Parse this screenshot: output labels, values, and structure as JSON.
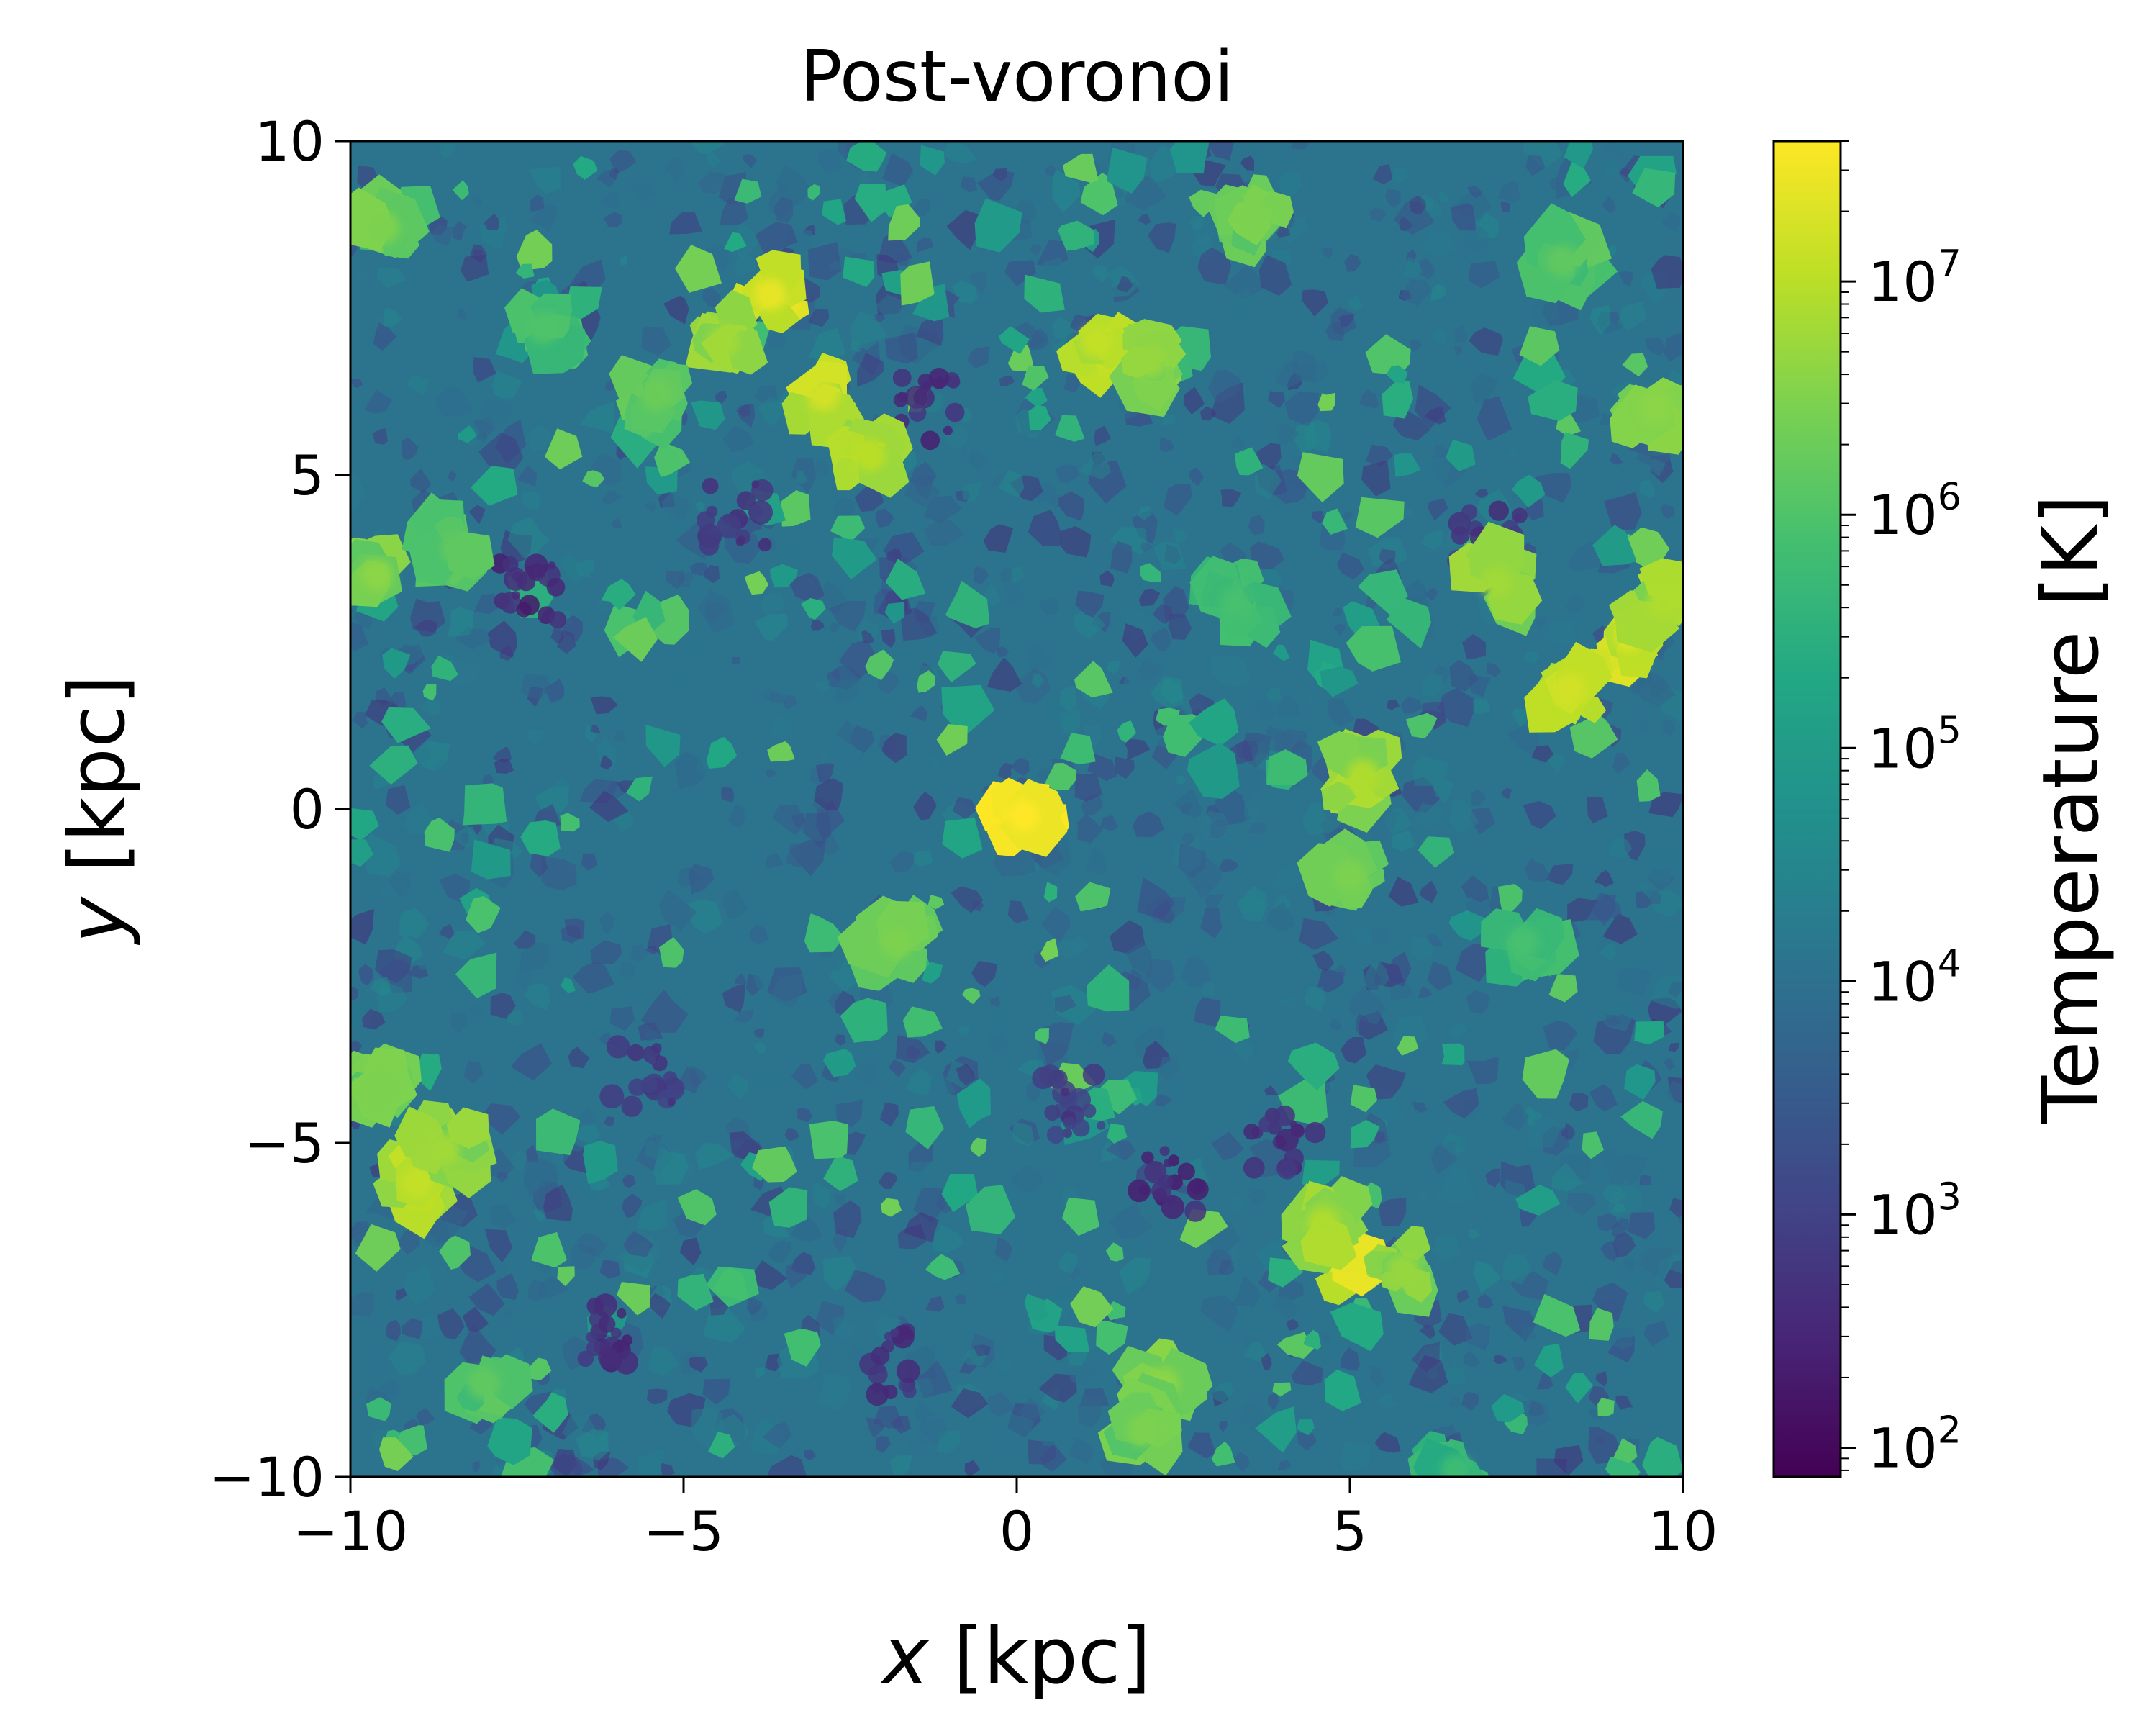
{
  "chart_data": {
    "type": "heatmap",
    "title": "Post-voronoi",
    "xlabel_var": "x",
    "xlabel_unit": " [kpc]",
    "ylabel_var": "y",
    "ylabel_unit": " [kpc]",
    "xlim": [
      -10,
      10
    ],
    "ylim": [
      -10,
      10
    ],
    "x_ticks": [
      {
        "value": -10,
        "label": "−10"
      },
      {
        "value": -5,
        "label": "−5"
      },
      {
        "value": 0,
        "label": "0"
      },
      {
        "value": 5,
        "label": "5"
      },
      {
        "value": 10,
        "label": "10"
      }
    ],
    "y_ticks": [
      {
        "value": -10,
        "label": "−10"
      },
      {
        "value": -5,
        "label": "−5"
      },
      {
        "value": 0,
        "label": "0"
      },
      {
        "value": 5,
        "label": "5"
      },
      {
        "value": 10,
        "label": "10"
      }
    ],
    "grid": false,
    "colorbar": {
      "label": "Temperature [K]",
      "scale": "log",
      "colormap": "viridis",
      "range": [
        75,
        40000000
      ],
      "ticks": [
        {
          "value": 100,
          "label": "10",
          "exp": "2"
        },
        {
          "value": 1000,
          "label": "10",
          "exp": "3"
        },
        {
          "value": 10000,
          "label": "10",
          "exp": "4"
        },
        {
          "value": 100000,
          "label": "10",
          "exp": "5"
        },
        {
          "value": 1000000,
          "label": "10",
          "exp": "6"
        },
        {
          "value": 10000000,
          "label": "10",
          "exp": "7"
        }
      ]
    },
    "background_temperature": 12000,
    "hot_regions": [
      {
        "x": -3.7,
        "y": 7.7,
        "T": 25000000
      },
      {
        "x": -2.9,
        "y": 6.2,
        "T": 16000000
      },
      {
        "x": -2.2,
        "y": 5.3,
        "T": 10000000
      },
      {
        "x": -4.4,
        "y": 7.0,
        "T": 6000000
      },
      {
        "x": 1.2,
        "y": 7.0,
        "T": 12000000
      },
      {
        "x": 2.0,
        "y": 6.7,
        "T": 5000000
      },
      {
        "x": 3.6,
        "y": 8.8,
        "T": 3000000
      },
      {
        "x": 8.2,
        "y": 8.2,
        "T": 1500000
      },
      {
        "x": 9.6,
        "y": 6.0,
        "T": 4000000
      },
      {
        "x": 7.2,
        "y": 3.4,
        "T": 6000000
      },
      {
        "x": 9.2,
        "y": 2.6,
        "T": 20000000
      },
      {
        "x": 8.3,
        "y": 1.8,
        "T": 16000000
      },
      {
        "x": 9.7,
        "y": 3.1,
        "T": 8000000
      },
      {
        "x": 5.2,
        "y": 0.5,
        "T": 8000000
      },
      {
        "x": 5.0,
        "y": -1.0,
        "T": 3000000
      },
      {
        "x": 0.1,
        "y": -0.1,
        "T": 40000000
      },
      {
        "x": 5.0,
        "y": -6.8,
        "T": 25000000
      },
      {
        "x": 4.6,
        "y": -6.2,
        "T": 8000000
      },
      {
        "x": 5.8,
        "y": -6.9,
        "T": 5000000
      },
      {
        "x": 2.2,
        "y": -8.6,
        "T": 4000000
      },
      {
        "x": 1.9,
        "y": -9.3,
        "T": 3000000
      },
      {
        "x": -9.0,
        "y": -5.6,
        "T": 12000000
      },
      {
        "x": -8.6,
        "y": -5.1,
        "T": 6000000
      },
      {
        "x": -9.6,
        "y": -4.2,
        "T": 3000000
      },
      {
        "x": -9.6,
        "y": 3.5,
        "T": 4000000
      },
      {
        "x": -8.4,
        "y": 3.9,
        "T": 1500000
      },
      {
        "x": -9.5,
        "y": 8.7,
        "T": 3000000
      },
      {
        "x": -5.4,
        "y": 6.2,
        "T": 2000000
      },
      {
        "x": -7.1,
        "y": 7.2,
        "T": 1000000
      },
      {
        "x": -1.8,
        "y": -2.0,
        "T": 3000000
      },
      {
        "x": -8.0,
        "y": -8.6,
        "T": 1500000
      },
      {
        "x": 6.6,
        "y": -9.9,
        "T": 600000
      },
      {
        "x": 7.6,
        "y": -2.0,
        "T": 800000
      },
      {
        "x": 3.3,
        "y": 3.1,
        "T": 800000
      }
    ],
    "cold_regions": [
      {
        "x": -7.3,
        "y": 3.2,
        "T": 300
      },
      {
        "x": -1.4,
        "y": 6.0,
        "T": 400
      },
      {
        "x": 2.3,
        "y": -5.6,
        "T": 300
      },
      {
        "x": -6.1,
        "y": -7.9,
        "T": 400
      },
      {
        "x": -2.0,
        "y": -8.3,
        "T": 500
      },
      {
        "x": 4.0,
        "y": -5.0,
        "T": 400
      },
      {
        "x": 7.1,
        "y": 4.0,
        "T": 600
      },
      {
        "x": -4.2,
        "y": 4.4,
        "T": 500
      },
      {
        "x": -5.6,
        "y": -4.0,
        "T": 600
      },
      {
        "x": 0.8,
        "y": -4.4,
        "T": 700
      }
    ]
  }
}
